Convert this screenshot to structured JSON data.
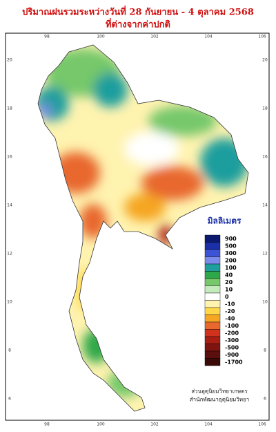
{
  "header": {
    "title_lines": [
      "ปริมาณฝนรวมระหว่างวันที่  28 กันยายน - 4 ตุลาคม 2568",
      "ที่ต่างจากค่าปกติ"
    ]
  },
  "map": {
    "lon_ticks": [
      98,
      100,
      102,
      104,
      106
    ],
    "lat_ticks": [
      20,
      18,
      16,
      14,
      12,
      10,
      8,
      6
    ]
  },
  "legend": {
    "unit": "มิลลิเมตร",
    "items": [
      {
        "label": 900,
        "color": "#0b1a6e"
      },
      {
        "label": 500,
        "color": "#1a2fa8"
      },
      {
        "label": 300,
        "color": "#3d53d6"
      },
      {
        "label": 200,
        "color": "#7b8bec"
      },
      {
        "label": 100,
        "color": "#1f9e9e"
      },
      {
        "label": 40,
        "color": "#2ea84a"
      },
      {
        "label": 20,
        "color": "#76c86a"
      },
      {
        "label": 10,
        "color": "#c4ebbc"
      },
      {
        "label": 0,
        "color": "#ffffff"
      },
      {
        "label": -10,
        "color": "#fff3b0"
      },
      {
        "label": -20,
        "color": "#ffd84a"
      },
      {
        "label": -40,
        "color": "#f5a623"
      },
      {
        "label": -100,
        "color": "#e8682e"
      },
      {
        "label": -200,
        "color": "#d0321e"
      },
      {
        "label": -300,
        "color": "#a81e14"
      },
      {
        "label": -500,
        "color": "#7d1410"
      },
      {
        "label": -900,
        "color": "#5a0f0c"
      },
      {
        "label": -1700,
        "color": "#3a0a08"
      }
    ]
  },
  "credits": [
    "ส่วนอุตุนิยมวิทยาเกษตร",
    "สำนักพัฒนาอุตุนิยมวิทยา"
  ]
}
